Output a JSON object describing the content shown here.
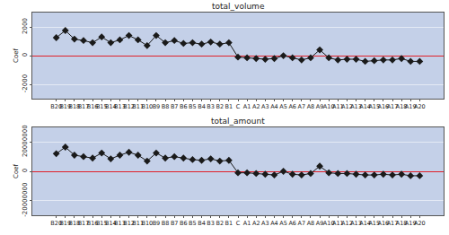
{
  "chart_data": [
    {
      "type": "line",
      "title": "total_volume",
      "ylabel": "Coef",
      "categories": [
        "B20",
        "B19",
        "B18",
        "B17",
        "B16",
        "B15",
        "B14",
        "B13",
        "B12",
        "B11",
        "B10",
        "B9",
        "B8",
        "B7",
        "B6",
        "B5",
        "B4",
        "B3",
        "B2",
        "B1",
        "C",
        "A1",
        "A2",
        "A3",
        "A4",
        "A5",
        "A6",
        "A7",
        "A8",
        "A9",
        "A10",
        "A11",
        "A12",
        "A13",
        "A14",
        "A15",
        "A16",
        "A17",
        "A18",
        "A19",
        "A20"
      ],
      "values": [
        1250,
        1750,
        1150,
        1050,
        900,
        1300,
        900,
        1100,
        1400,
        1100,
        700,
        1400,
        900,
        1050,
        850,
        900,
        800,
        950,
        800,
        900,
        -100,
        -150,
        -200,
        -250,
        -200,
        0,
        -150,
        -300,
        -150,
        400,
        -150,
        -300,
        -250,
        -250,
        -400,
        -350,
        -300,
        -300,
        -200,
        -400,
        -400
      ],
      "color": "#1a1a1a",
      "marker": "diamond",
      "grid": true,
      "ylim": [
        -3000,
        3000
      ],
      "yticks": [
        -2000,
        0,
        2000
      ]
    },
    {
      "type": "line",
      "title": "total_amount",
      "ylabel": "Coef",
      "categories": [
        "B20",
        "B19",
        "B18",
        "B17",
        "B16",
        "B15",
        "B14",
        "B13",
        "B12",
        "B11",
        "B10",
        "B9",
        "B8",
        "B7",
        "B6",
        "B5",
        "B4",
        "B3",
        "B2",
        "B1",
        "C",
        "A1",
        "A2",
        "A3",
        "A4",
        "A5",
        "A6",
        "A7",
        "A8",
        "A9",
        "A10",
        "A11",
        "A12",
        "A13",
        "A14",
        "A15",
        "A16",
        "A17",
        "A18",
        "A19",
        "A20"
      ],
      "values": [
        12000000,
        16500000,
        11000000,
        10000000,
        9000000,
        12500000,
        8500000,
        11000000,
        13000000,
        11000000,
        7000000,
        12500000,
        9000000,
        10000000,
        9000000,
        8000000,
        7500000,
        8500000,
        7000000,
        7500000,
        -1000000,
        -1000000,
        -1500000,
        -2000000,
        -2500000,
        0,
        -2000000,
        -2500000,
        -1500000,
        3500000,
        -1000000,
        -1500000,
        -1500000,
        -2000000,
        -2500000,
        -2500000,
        -2000000,
        -2500000,
        -2000000,
        -3000000,
        -3000000
      ],
      "color": "#1a1a1a",
      "marker": "diamond",
      "grid": true,
      "ylim": [
        -30000000,
        30000000
      ],
      "yticks": [
        -20000000,
        0,
        20000000
      ]
    }
  ]
}
